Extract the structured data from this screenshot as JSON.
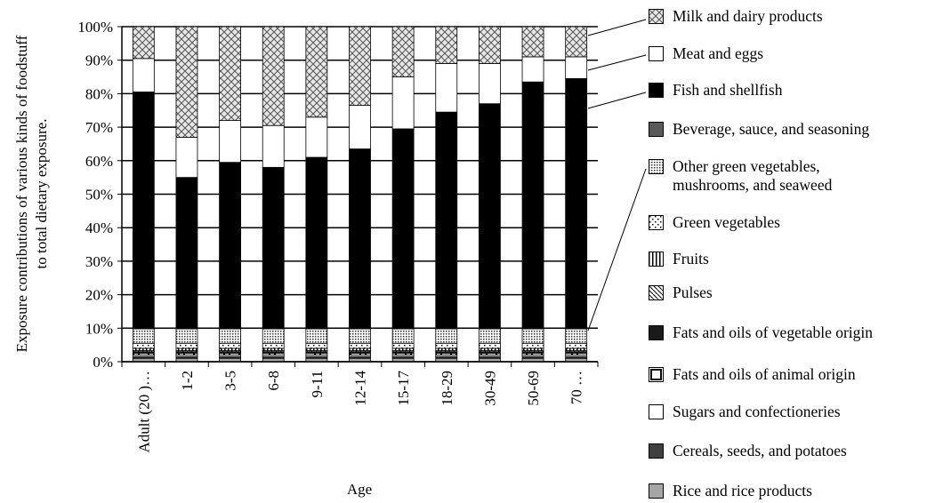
{
  "chart_data": {
    "type": "stacked_bar",
    "ylabel": [
      "Exposure contributions of various kinds of foodstuff",
      "to total dietary exposure."
    ],
    "xlabel": "Age",
    "categories": [
      "Adult (20 )…",
      "1-2",
      "3-5",
      "6-8",
      "9-11",
      "12-14",
      "15-17",
      "18-29",
      "30-49",
      "50-69",
      "70 …"
    ],
    "ylim": [
      0,
      100
    ],
    "yticks": [
      {
        "value": 0,
        "label": "0%"
      },
      {
        "value": 10,
        "label": "10%"
      },
      {
        "value": 20,
        "label": "20%"
      },
      {
        "value": 30,
        "label": "30%"
      },
      {
        "value": 40,
        "label": "40%"
      },
      {
        "value": 50,
        "label": "50%"
      },
      {
        "value": 60,
        "label": "60%"
      },
      {
        "value": 70,
        "label": "70%"
      },
      {
        "value": 80,
        "label": "80%"
      },
      {
        "value": 90,
        "label": "90%"
      },
      {
        "value": 100,
        "label": "100%"
      }
    ],
    "grid": true,
    "legend": "right",
    "series": [
      {
        "name": "Rice and rice products",
        "color": "#a6a6a6",
        "pattern": "solid",
        "values": [
          1,
          1,
          1,
          1,
          1,
          1,
          1,
          1,
          1,
          1,
          1
        ]
      },
      {
        "name": "Cereals, seeds, and potatoes",
        "color": "#404040",
        "pattern": "solid",
        "values": [
          0.5,
          0.5,
          0.5,
          0.5,
          0.5,
          0.5,
          0.5,
          0.5,
          0.5,
          0.5,
          0.5
        ]
      },
      {
        "name": "Sugars and confectioneries",
        "color": "#ffffff",
        "pattern": "solid",
        "values": [
          0.5,
          0.5,
          0.5,
          0.5,
          0.5,
          0.5,
          0.5,
          0.5,
          0.5,
          0.5,
          0.5
        ]
      },
      {
        "name": "Fats and oils of animal origin",
        "color": "#000000",
        "pattern": "box",
        "values": [
          0.5,
          0.5,
          0.5,
          0.5,
          0.5,
          0.5,
          0.5,
          0.5,
          0.5,
          0.5,
          0.5
        ]
      },
      {
        "name": "Fats and oils of vegetable origin",
        "color": "#1a1a1a",
        "pattern": "solid",
        "values": [
          0.5,
          0.5,
          0.5,
          0.5,
          0.5,
          0.5,
          0.5,
          0.5,
          0.5,
          0.5,
          0.5
        ]
      },
      {
        "name": "Pulses",
        "color": "#000000",
        "pattern": "diagonal",
        "values": [
          0.3,
          0.3,
          0.3,
          0.3,
          0.3,
          0.3,
          0.3,
          0.3,
          0.3,
          0.3,
          0.3
        ]
      },
      {
        "name": "Fruits",
        "color": "#000000",
        "pattern": "vertical",
        "values": [
          0.7,
          0.7,
          0.7,
          0.7,
          0.7,
          0.7,
          0.7,
          0.7,
          0.7,
          0.7,
          0.7
        ]
      },
      {
        "name": "Green vegetables",
        "color": "#000000",
        "pattern": "sparse-dots",
        "values": [
          1.5,
          1.5,
          1.5,
          1.5,
          1.5,
          1.5,
          1.5,
          1.5,
          1.5,
          1.5,
          1.5
        ]
      },
      {
        "name": "Other green vegetables, mushrooms, and seaweed",
        "color": "#000000",
        "pattern": "dense-dots",
        "values": [
          4.3,
          4.3,
          4.3,
          4.3,
          4.3,
          4.3,
          4.3,
          4.3,
          4.3,
          4.3,
          4.3
        ]
      },
      {
        "name": "Beverage, sauce, and seasoning",
        "color": "#595959",
        "pattern": "solid",
        "values": [
          0.2,
          0.2,
          0.2,
          0.2,
          0.2,
          0.2,
          0.2,
          0.2,
          0.2,
          0.2,
          0.2
        ]
      },
      {
        "name": "Fish and shellfish",
        "color": "#000000",
        "pattern": "solid",
        "values": [
          70.5,
          45,
          49.5,
          48,
          51,
          53.5,
          59.5,
          64.5,
          67,
          73.5,
          74.5
        ]
      },
      {
        "name": "Meat and eggs",
        "color": "#ffffff",
        "pattern": "solid",
        "values": [
          10,
          12,
          12.5,
          12.5,
          12,
          13,
          15.5,
          14.5,
          12,
          7.5,
          6.5
        ]
      },
      {
        "name": "Milk and dairy products",
        "color": "#000000",
        "pattern": "crosshatch",
        "values": [
          9.5,
          33,
          28,
          29.5,
          27,
          23.5,
          15,
          11,
          11,
          9,
          9
        ]
      }
    ]
  }
}
